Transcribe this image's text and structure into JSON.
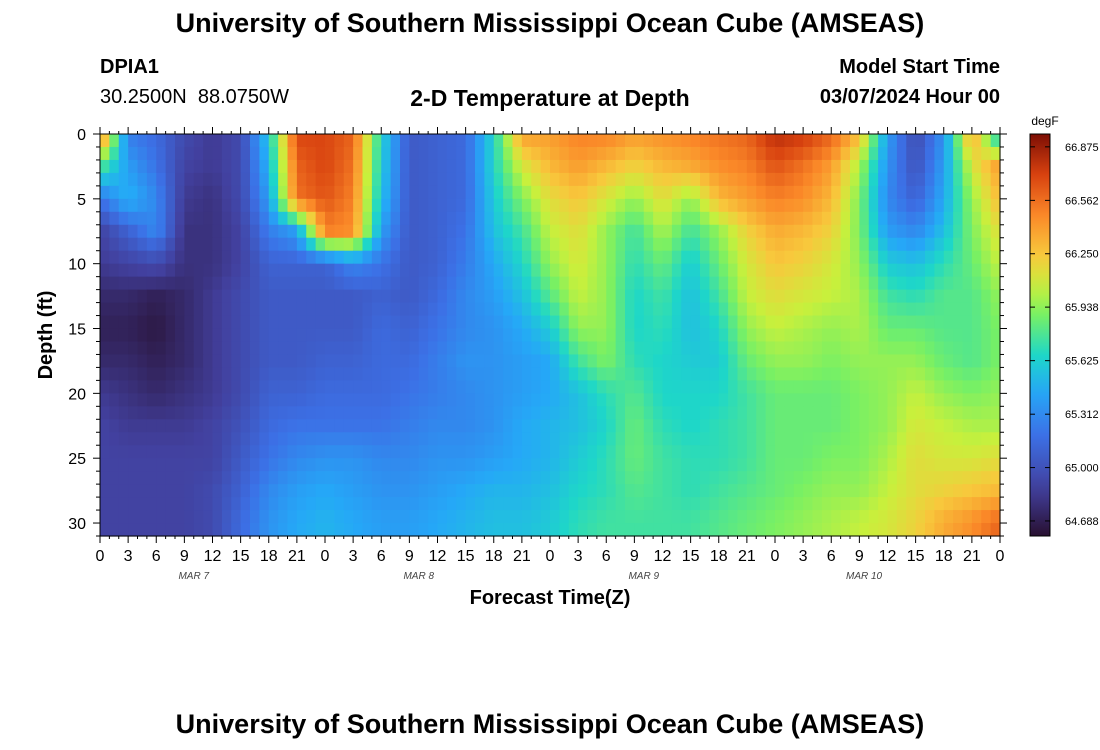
{
  "header": {
    "title": "University of Southern Mississippi Ocean Cube (AMSEAS)",
    "station_id": "DPIA1",
    "station_coords": "30.2500N  88.0750W",
    "plot_title": "2-D Temperature at Depth",
    "model_label": "Model Start Time",
    "model_time": "03/07/2024 Hour 00"
  },
  "footer": {
    "title": "University of Southern Mississippi Ocean Cube (AMSEAS)"
  },
  "chart_data": {
    "type": "heatmap",
    "title": "2-D Temperature at Depth",
    "xlabel": "Forecast Time(Z)",
    "ylabel": "Depth (ft)",
    "x_tick_labels": [
      "0",
      "3",
      "6",
      "9",
      "12",
      "15",
      "18",
      "21",
      "0",
      "3",
      "6",
      "9",
      "12",
      "15",
      "18",
      "21",
      "0",
      "3",
      "6",
      "9",
      "12",
      "15",
      "18",
      "21",
      "0",
      "3",
      "6",
      "9",
      "12",
      "15",
      "18",
      "21",
      "0"
    ],
    "x_hours": [
      0,
      3,
      6,
      9,
      12,
      15,
      18,
      21,
      24,
      27,
      30,
      33,
      36,
      39,
      42,
      45,
      48,
      51,
      54,
      57,
      60,
      63,
      66,
      69,
      72,
      75,
      78,
      81,
      84,
      87,
      90,
      93,
      96
    ],
    "date_labels": [
      {
        "label": "MAR 7",
        "hour": 10
      },
      {
        "label": "MAR 8",
        "hour": 34
      },
      {
        "label": "MAR 9",
        "hour": 58
      },
      {
        "label": "MAR 10",
        "hour": 81.5
      }
    ],
    "xlim": [
      0,
      96
    ],
    "ylim": [
      0,
      31
    ],
    "y_ticks": [
      0,
      5,
      10,
      15,
      20,
      25,
      30
    ],
    "y_reversed": true,
    "colorbar": {
      "unit": "degF",
      "min": 64.6,
      "max": 66.95,
      "tick_values": [
        64.688,
        65.0,
        65.312,
        65.625,
        65.938,
        66.25,
        66.562,
        66.875
      ],
      "tick_labels": [
        "64.688",
        "65.000",
        "65.312",
        "65.625",
        "65.938",
        "66.250",
        "66.562",
        "66.875"
      ]
    },
    "depths": [
      0,
      2.5,
      5,
      7.5,
      10,
      12.5,
      15,
      17.5,
      20,
      22.5,
      25,
      27.5,
      30
    ],
    "hours": [
      0,
      3,
      6,
      9,
      12,
      15,
      18,
      21,
      24,
      27,
      30,
      33,
      36,
      39,
      42,
      45,
      48,
      51,
      54,
      57,
      60,
      63,
      66,
      69,
      72,
      75,
      78,
      81,
      84,
      87,
      90,
      93,
      96
    ],
    "values": [
      [
        66.6,
        65.25,
        65.15,
        64.95,
        64.85,
        64.95,
        65.6,
        66.7,
        66.7,
        66.6,
        65.65,
        65.05,
        65.1,
        65.15,
        65.65,
        66.4,
        66.4,
        66.5,
        66.5,
        66.4,
        66.45,
        66.5,
        66.55,
        66.6,
        66.8,
        66.75,
        66.6,
        66.3,
        65.4,
        64.95,
        65.35,
        66.4,
        65.5
      ],
      [
        65.8,
        65.4,
        65.2,
        64.9,
        64.85,
        64.95,
        65.5,
        66.6,
        66.7,
        66.55,
        65.6,
        65.05,
        65.1,
        65.15,
        65.65,
        66.1,
        66.3,
        66.4,
        66.3,
        66.2,
        66.3,
        66.35,
        66.45,
        66.5,
        66.65,
        66.55,
        66.4,
        66.0,
        65.35,
        65.0,
        65.4,
        66.1,
        66.4
      ],
      [
        65.2,
        65.5,
        65.3,
        64.85,
        64.8,
        64.95,
        65.4,
        66.55,
        66.65,
        66.5,
        65.55,
        65.05,
        65.1,
        65.15,
        65.6,
        65.9,
        66.15,
        66.25,
        66.1,
        65.95,
        66.15,
        65.95,
        66.3,
        66.4,
        66.5,
        66.45,
        66.3,
        65.9,
        65.3,
        65.1,
        65.45,
        65.95,
        66.3
      ],
      [
        64.9,
        65.1,
        65.3,
        64.8,
        64.8,
        64.9,
        65.25,
        65.4,
        66.5,
        66.45,
        65.4,
        65.05,
        65.1,
        65.2,
        65.55,
        65.75,
        66.05,
        66.15,
        65.95,
        65.75,
        66.0,
        65.75,
        65.95,
        66.2,
        66.35,
        66.3,
        66.2,
        65.9,
        65.4,
        65.3,
        65.55,
        65.9,
        66.15
      ],
      [
        64.85,
        64.9,
        64.95,
        64.8,
        64.8,
        64.9,
        65.1,
        65.1,
        65.1,
        65.3,
        65.2,
        65.05,
        65.1,
        65.25,
        65.45,
        65.65,
        65.95,
        66.1,
        65.95,
        65.7,
        65.85,
        65.6,
        65.85,
        66.1,
        66.25,
        66.2,
        66.1,
        65.95,
        65.6,
        65.55,
        65.7,
        65.85,
        66.05
      ],
      [
        64.75,
        64.75,
        64.7,
        64.75,
        64.85,
        64.95,
        65.05,
        65.05,
        65.05,
        65.05,
        65.1,
        65.05,
        65.15,
        65.3,
        65.4,
        65.55,
        65.8,
        66.05,
        65.95,
        65.65,
        65.75,
        65.55,
        65.75,
        66.05,
        66.15,
        66.1,
        66.05,
        66.0,
        65.75,
        65.7,
        65.8,
        65.8,
        65.95
      ],
      [
        64.7,
        64.7,
        64.65,
        64.75,
        64.85,
        64.95,
        65.05,
        65.05,
        65.05,
        65.05,
        65.15,
        65.1,
        65.2,
        65.3,
        65.35,
        65.45,
        65.6,
        65.95,
        65.95,
        65.65,
        65.7,
        65.55,
        65.65,
        65.95,
        66.05,
        66.0,
        65.95,
        66.0,
        65.85,
        65.85,
        65.8,
        65.8,
        65.9
      ],
      [
        64.75,
        64.75,
        64.7,
        64.75,
        64.85,
        64.95,
        65.05,
        65.05,
        65.1,
        65.1,
        65.15,
        65.15,
        65.25,
        65.35,
        65.35,
        65.4,
        65.45,
        65.75,
        65.9,
        65.7,
        65.65,
        65.6,
        65.6,
        65.85,
        65.95,
        65.95,
        65.9,
        65.95,
        65.95,
        65.95,
        65.85,
        65.8,
        65.9
      ],
      [
        64.85,
        64.8,
        64.75,
        64.8,
        64.85,
        64.95,
        65.1,
        65.1,
        65.15,
        65.15,
        65.15,
        65.2,
        65.25,
        65.3,
        65.35,
        65.4,
        65.45,
        65.55,
        65.7,
        65.8,
        65.65,
        65.65,
        65.65,
        65.75,
        65.85,
        65.85,
        65.85,
        65.9,
        65.95,
        66.05,
        65.95,
        65.9,
        65.95
      ],
      [
        64.9,
        64.85,
        64.85,
        64.85,
        64.9,
        65.0,
        65.15,
        65.2,
        65.2,
        65.2,
        65.2,
        65.25,
        65.3,
        65.3,
        65.35,
        65.45,
        65.5,
        65.55,
        65.65,
        65.85,
        65.7,
        65.65,
        65.7,
        65.75,
        65.85,
        65.85,
        65.85,
        65.9,
        65.95,
        66.1,
        66.05,
        66.0,
        66.0
      ],
      [
        64.9,
        64.9,
        64.9,
        64.9,
        64.9,
        65.05,
        65.2,
        65.3,
        65.35,
        65.35,
        65.3,
        65.3,
        65.35,
        65.35,
        65.4,
        65.45,
        65.5,
        65.6,
        65.7,
        65.85,
        65.75,
        65.7,
        65.7,
        65.75,
        65.85,
        65.85,
        65.9,
        65.9,
        66.0,
        66.15,
        66.1,
        66.1,
        66.15
      ],
      [
        64.9,
        64.9,
        64.9,
        64.9,
        64.95,
        65.1,
        65.3,
        65.4,
        65.45,
        65.4,
        65.35,
        65.35,
        65.4,
        65.45,
        65.5,
        65.5,
        65.55,
        65.65,
        65.7,
        65.8,
        65.75,
        65.7,
        65.75,
        65.8,
        65.85,
        65.9,
        65.95,
        65.95,
        66.05,
        66.15,
        66.2,
        66.25,
        66.3
      ],
      [
        64.9,
        64.9,
        64.9,
        64.9,
        64.95,
        65.15,
        65.35,
        65.45,
        65.5,
        65.45,
        65.4,
        65.4,
        65.45,
        65.5,
        65.55,
        65.55,
        65.6,
        65.7,
        65.75,
        65.75,
        65.75,
        65.75,
        65.8,
        65.85,
        65.9,
        65.95,
        66.0,
        66.05,
        66.1,
        66.2,
        66.35,
        66.45,
        66.6
      ]
    ]
  }
}
